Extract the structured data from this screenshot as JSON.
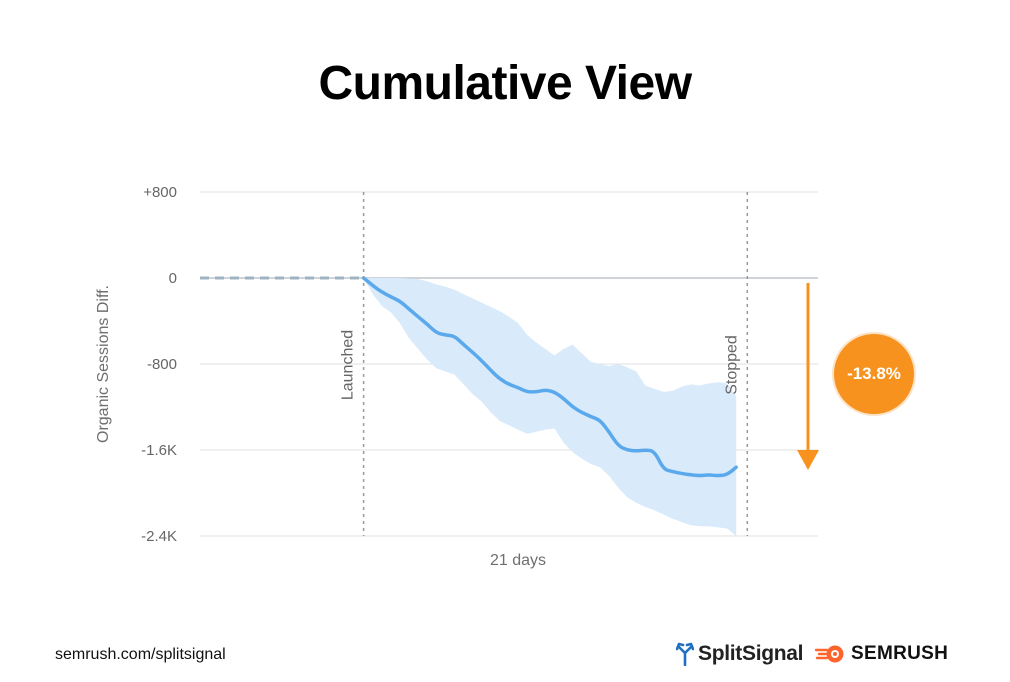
{
  "page": {
    "title": "Cumulative View",
    "footer_url": "semrush.com/splitsignal",
    "brand_splitsignal": "SplitSignal",
    "brand_semrush": "SEMRUSH",
    "badge_text": "-13.8%"
  },
  "colors": {
    "line": "#5aa9ec",
    "band": "#d9eafb",
    "accent": "#f7921e",
    "grid": "#e0e0e0",
    "splitsignal_icon": "#1f6fc2",
    "semrush_icon": "#ff642d"
  },
  "icons": {
    "splitsignal": "split-arrow-logo-icon",
    "semrush": "semrush-fireball-logo-icon",
    "arrow": "down-arrow-icon"
  },
  "chart_data": {
    "type": "line",
    "title": "Cumulative View",
    "xlabel": "21 days",
    "ylabel": "Organic Sessions Diff.",
    "ylim": [
      -2400,
      800
    ],
    "yticks": [
      800,
      0,
      -800,
      -1600,
      -2400
    ],
    "ytick_labels": [
      "+800",
      "0",
      "-800",
      "-1.6K",
      "-2.4K"
    ],
    "xlim": [
      -9,
      25
    ],
    "grid": true,
    "annotations": {
      "launched_label": "Launched",
      "stopped_label": "Stopped"
    },
    "launched_x": 0,
    "stopped_x": 21,
    "pre_launch": {
      "x": [
        -9,
        0
      ],
      "values": [
        0,
        0
      ]
    },
    "series": [
      {
        "x": [
          0,
          0.5,
          1,
          1.5,
          2,
          2.5,
          3,
          3.5,
          4,
          4.5,
          5,
          5.5,
          6,
          6.5,
          7,
          7.5,
          8,
          8.5,
          9,
          9.5,
          10,
          10.5,
          11,
          11.5,
          12,
          12.5,
          13,
          13.5,
          14,
          14.5,
          15,
          15.5,
          16,
          16.5,
          17,
          17.5,
          18,
          18.5,
          19,
          19.5,
          20,
          20.5
        ],
        "values": [
          0,
          -70,
          -130,
          -175,
          -215,
          -290,
          -360,
          -430,
          -510,
          -530,
          -540,
          -620,
          -690,
          -770,
          -860,
          -940,
          -990,
          -1020,
          -1060,
          -1060,
          -1040,
          -1060,
          -1120,
          -1200,
          -1250,
          -1290,
          -1320,
          -1430,
          -1560,
          -1600,
          -1610,
          -1600,
          -1610,
          -1780,
          -1800,
          -1820,
          -1830,
          -1840,
          -1830,
          -1840,
          -1830,
          -1760
        ],
        "upper": [
          0,
          0,
          0,
          0,
          0,
          -5,
          -10,
          -30,
          -60,
          -80,
          -110,
          -150,
          -190,
          -230,
          -270,
          -310,
          -360,
          -420,
          -530,
          -600,
          -660,
          -720,
          -660,
          -620,
          -700,
          -780,
          -800,
          -820,
          -800,
          -830,
          -870,
          -1000,
          -1030,
          -1060,
          -1050,
          -1010,
          -990,
          -1000,
          -980,
          -970,
          -980,
          -1100
        ],
        "lower": [
          0,
          -150,
          -260,
          -320,
          -420,
          -560,
          -660,
          -760,
          -840,
          -870,
          -900,
          -990,
          -1080,
          -1150,
          -1250,
          -1330,
          -1370,
          -1410,
          -1450,
          -1430,
          -1410,
          -1400,
          -1530,
          -1620,
          -1680,
          -1730,
          -1760,
          -1840,
          -1950,
          -2040,
          -2090,
          -2130,
          -2160,
          -2200,
          -2240,
          -2270,
          -2300,
          -2310,
          -2310,
          -2320,
          -2330,
          -2400
        ]
      }
    ],
    "annotation_badge": "-13.8%"
  }
}
